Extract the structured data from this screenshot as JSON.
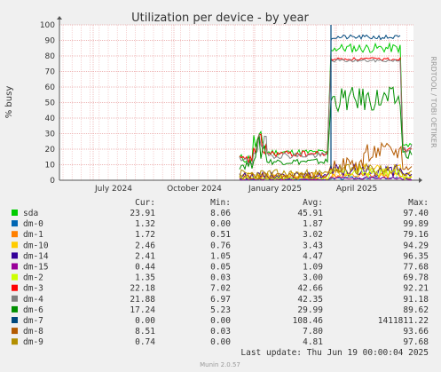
{
  "chart_data": {
    "type": "line",
    "title": "Utilization per device - by year",
    "ylabel": "% busy",
    "ylim": [
      0,
      100
    ],
    "y_ticks": [
      "0",
      "10",
      "20",
      "30",
      "40",
      "50",
      "60",
      "70",
      "80",
      "90",
      "100"
    ],
    "x_tick_labels": [
      "July 2024",
      "October 2024",
      "January 2025",
      "April 2025"
    ],
    "grid": true,
    "legend_headers": {
      "cur": "Cur:",
      "min": "Min:",
      "avg": "Avg:",
      "max": "Max:"
    },
    "series": [
      {
        "name": "sda",
        "color": "#00cc00",
        "cur": "23.91",
        "min": "8.06",
        "avg": "45.91",
        "max": "97.40"
      },
      {
        "name": "dm-0",
        "color": "#0066b3",
        "cur": "1.32",
        "min": "0.00",
        "avg": "1.87",
        "max": "99.89"
      },
      {
        "name": "dm-1",
        "color": "#ff8000",
        "cur": "1.72",
        "min": "0.51",
        "avg": "3.02",
        "max": "79.16"
      },
      {
        "name": "dm-10",
        "color": "#ffcc00",
        "cur": "2.46",
        "min": "0.76",
        "avg": "3.43",
        "max": "94.29"
      },
      {
        "name": "dm-14",
        "color": "#330099",
        "cur": "2.41",
        "min": "1.05",
        "avg": "4.47",
        "max": "96.35"
      },
      {
        "name": "dm-15",
        "color": "#990099",
        "cur": "0.44",
        "min": "0.05",
        "avg": "1.09",
        "max": "77.68"
      },
      {
        "name": "dm-2",
        "color": "#ccff00",
        "cur": "1.35",
        "min": "0.03",
        "avg": "3.00",
        "max": "69.78"
      },
      {
        "name": "dm-3",
        "color": "#ff0000",
        "cur": "22.18",
        "min": "7.02",
        "avg": "42.66",
        "max": "92.21"
      },
      {
        "name": "dm-4",
        "color": "#808080",
        "cur": "21.88",
        "min": "6.97",
        "avg": "42.35",
        "max": "91.18"
      },
      {
        "name": "dm-6",
        "color": "#008f00",
        "cur": "17.24",
        "min": "5.23",
        "avg": "29.99",
        "max": "89.62"
      },
      {
        "name": "dm-7",
        "color": "#00487d",
        "cur": "0.00",
        "min": "0.00",
        "avg": "108.46",
        "max": "1411811.22"
      },
      {
        "name": "dm-8",
        "color": "#b35a00",
        "cur": "8.51",
        "min": "0.03",
        "avg": "7.80",
        "max": "93.66"
      },
      {
        "name": "dm-9",
        "color": "#b38f00",
        "cur": "0.74",
        "min": "0.00",
        "avg": "4.81",
        "max": "97.68"
      }
    ],
    "last_update": "Last update: Thu Jun 19 00:00:04 2025",
    "side_label": "RRDTOOL / TOBI OETIKER",
    "footer": "Munin 2.0.57"
  }
}
